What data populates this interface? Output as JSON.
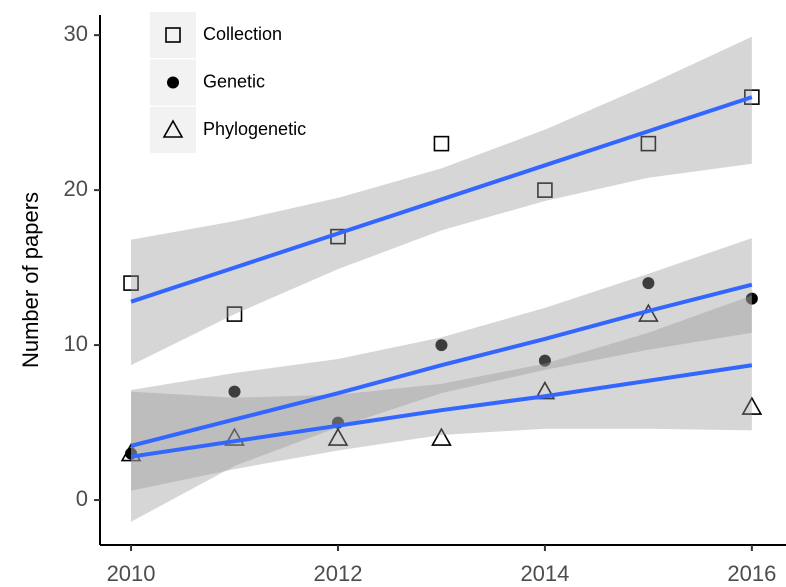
{
  "chart_data": {
    "type": "scatter",
    "y_label": "Number of papers",
    "x": [
      2010,
      2011,
      2012,
      2013,
      2014,
      2015,
      2016
    ],
    "xlim": [
      2009.7,
      2016.33
    ],
    "ylim": [
      -2.9,
      31.3
    ],
    "xticks": [
      2010,
      2012,
      2014,
      2016
    ],
    "yticks": [
      0,
      10,
      20,
      30
    ],
    "line_color": "#3366ff",
    "band_color": "#999999",
    "series": [
      {
        "name": "Collection",
        "marker": "square",
        "color": "#000000",
        "values": [
          14,
          12,
          17,
          23,
          20,
          23,
          26
        ],
        "fit": [
          12.8,
          15.0,
          17.2,
          19.4,
          21.6,
          23.8,
          26.0
        ],
        "band_upper": [
          16.8,
          18,
          19.5,
          21.4,
          23.9,
          26.8,
          29.9
        ],
        "band_lower": [
          8.7,
          12,
          14.9,
          17.4,
          19.3,
          20.8,
          21.7
        ]
      },
      {
        "name": "Genetic",
        "marker": "circle",
        "color": "#000000",
        "values": [
          3,
          7,
          5,
          10,
          9,
          14,
          13
        ],
        "fit": [
          3.5,
          5.2,
          6.9,
          8.7,
          10.4,
          12.2,
          13.9
        ],
        "band_upper": [
          7.1,
          8.2,
          9.1,
          10.5,
          12.4,
          14.6,
          16.9
        ],
        "band_lower": [
          -1.4,
          2.2,
          4.7,
          6.9,
          8.4,
          9.7,
          10.8
        ]
      },
      {
        "name": "Phylogenetic",
        "marker": "triangle",
        "color": "#000000",
        "values": [
          3,
          4,
          4,
          4,
          7,
          12,
          6
        ],
        "fit": [
          2.8,
          3.8,
          4.8,
          5.8,
          6.7,
          7.7,
          8.7
        ],
        "band_upper": [
          7.0,
          6.6,
          6.8,
          7.5,
          8.8,
          10.8,
          13.2
        ],
        "band_lower": [
          0.6,
          2.0,
          3.2,
          4.2,
          4.6,
          4.6,
          4.5
        ]
      }
    ]
  }
}
